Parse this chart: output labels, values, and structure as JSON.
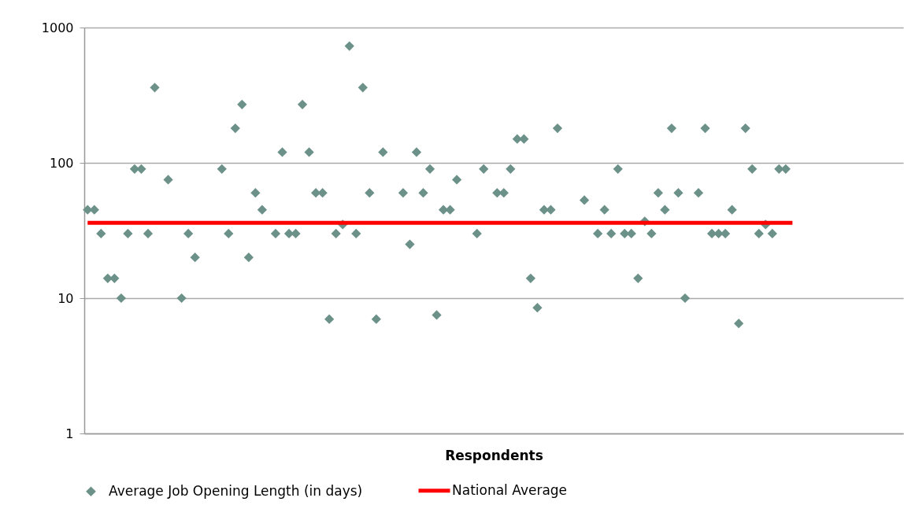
{
  "chart_data": {
    "type": "scatter",
    "xlabel": "Respondents",
    "categories": [
      null,
      null,
      null,
      null,
      null,
      null,
      null,
      null,
      null,
      null,
      null,
      null,
      null,
      null,
      null,
      null,
      null,
      null,
      null,
      null,
      null,
      null,
      null,
      null,
      null,
      null,
      null,
      null,
      null,
      null,
      null,
      null,
      null,
      null,
      null,
      null,
      null,
      null,
      null,
      null,
      null,
      null,
      null,
      null,
      null,
      null,
      null,
      null,
      null,
      null,
      null,
      null,
      null,
      null,
      null,
      null,
      null,
      null,
      null,
      null,
      null,
      null,
      null,
      null,
      null,
      null,
      null,
      null,
      null,
      null,
      null,
      null,
      null,
      null,
      null,
      null,
      null,
      null,
      null,
      null,
      null,
      null,
      null,
      null,
      null,
      null,
      null,
      null,
      null,
      null,
      null,
      null,
      null,
      null,
      null,
      null,
      null,
      null,
      null,
      null,
      null,
      null,
      null,
      null,
      null,
      null,
      null,
      null,
      null,
      null,
      null,
      null,
      null,
      null,
      null,
      null,
      null,
      null,
      null,
      null,
      null,
      null
    ],
    "series": [
      {
        "name": "Average Job Opening Length (in days)",
        "marker": "diamond",
        "color": "#6b9188",
        "values": [
          45,
          45,
          30,
          14,
          14,
          10,
          30,
          90,
          90,
          30,
          360,
          null,
          75,
          null,
          10,
          30,
          20,
          null,
          null,
          null,
          90,
          30,
          180,
          270,
          20,
          60,
          45,
          null,
          30,
          120,
          30,
          30,
          270,
          120,
          60,
          60,
          7,
          30,
          35,
          730,
          30,
          360,
          60,
          7,
          120,
          null,
          null,
          60,
          25,
          120,
          60,
          90,
          7.5,
          45,
          45,
          75,
          null,
          null,
          30,
          90,
          null,
          60,
          60,
          90,
          150,
          150,
          14,
          8.5,
          45,
          45,
          180,
          null,
          null,
          null,
          53,
          null,
          30,
          45,
          30,
          90,
          30,
          30,
          14,
          37,
          30,
          60,
          45,
          180,
          60,
          10,
          null,
          60,
          180,
          30,
          30,
          30,
          45,
          6.5,
          180,
          90,
          30,
          35,
          30,
          90,
          90,
          null,
          null,
          null,
          null,
          null,
          null,
          null,
          null,
          null,
          null,
          null,
          null,
          null,
          null,
          null,
          null,
          null
        ]
      },
      {
        "name": "National Average",
        "type": "line",
        "marker": "none",
        "color": "#ff0000",
        "values": [
          36,
          36,
          36,
          36,
          36,
          36,
          36,
          36,
          36,
          36,
          36,
          36,
          36,
          36,
          36,
          36,
          36,
          36,
          36,
          36,
          36,
          36,
          36,
          36,
          36,
          36,
          36,
          36,
          36,
          36,
          36,
          36,
          36,
          36,
          36,
          36,
          36,
          36,
          36,
          36,
          36,
          36,
          36,
          36,
          36,
          36,
          36,
          36,
          36,
          36,
          36,
          36,
          36,
          36,
          36,
          36,
          36,
          36,
          36,
          36,
          36,
          36,
          36,
          36,
          36,
          36,
          36,
          36,
          36,
          36,
          36,
          36,
          36,
          36,
          36,
          36,
          36,
          36,
          36,
          36,
          36,
          36,
          36,
          36,
          36,
          36,
          36,
          36,
          36,
          36,
          36,
          36,
          36,
          36,
          36,
          36,
          36,
          36,
          36,
          36,
          36,
          36,
          36,
          36,
          36,
          36,
          null,
          null,
          null,
          null,
          null,
          null,
          null,
          null,
          null,
          null,
          null,
          null,
          null,
          null,
          null,
          null
        ]
      }
    ],
    "log": true,
    "ylim": [
      1,
      1000
    ],
    "yticks": [
      1,
      10,
      100,
      1000
    ],
    "grid": "y",
    "legend": "bottom",
    "line_style": "solid",
    "tick_labels": "y"
  }
}
